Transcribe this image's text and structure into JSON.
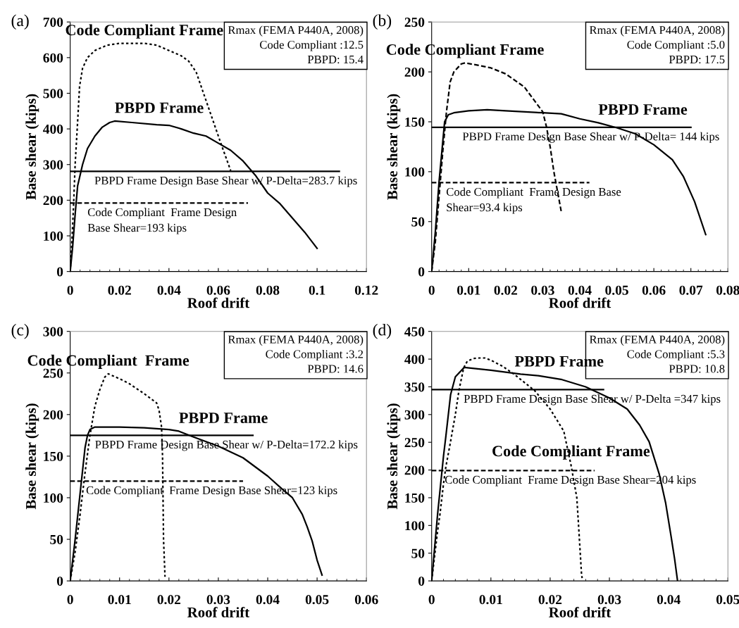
{
  "chart_data": [
    {
      "type": "line",
      "title": "(a)",
      "xlabel": "Roof drift",
      "ylabel": "Base shear (kips)",
      "xlim": [
        0,
        0.12
      ],
      "xticks": [
        0,
        0.02,
        0.04,
        0.06,
        0.08,
        0.1,
        0.12
      ],
      "ylim": [
        0,
        700
      ],
      "yticks": [
        0,
        100,
        200,
        300,
        400,
        500,
        600,
        700
      ],
      "grid": false,
      "legend": false,
      "marker": "none",
      "series": [
        {
          "color": "#000000",
          "line_style": "dotted",
          "x": [
            0,
            0.0005,
            0.001,
            0.0015,
            0.002,
            0.003,
            0.0038,
            0.005,
            0.007,
            0.01,
            0.015,
            0.02,
            0.03,
            0.035,
            0.04,
            0.045,
            0.048,
            0.051,
            0.054,
            0.058,
            0.061,
            0.065
          ],
          "values": [
            0,
            60,
            130,
            210,
            300,
            420,
            520,
            570,
            600,
            620,
            635,
            640,
            640,
            635,
            620,
            605,
            590,
            560,
            500,
            420,
            360,
            283
          ]
        },
        {
          "color": "#000000",
          "line_style": "solid",
          "x": [
            0,
            0.001,
            0.002,
            0.003,
            0.005,
            0.007,
            0.01,
            0.013,
            0.016,
            0.018,
            0.025,
            0.035,
            0.04,
            0.045,
            0.05,
            0.055,
            0.06,
            0.065,
            0.07,
            0.075,
            0.08,
            0.085,
            0.09,
            0.095,
            0.1
          ],
          "values": [
            0,
            70,
            160,
            240,
            300,
            345,
            380,
            405,
            418,
            422,
            418,
            412,
            410,
            400,
            388,
            380,
            360,
            340,
            310,
            270,
            220,
            190,
            150,
            110,
            65
          ]
        },
        {
          "color": "#000000",
          "line_style": "solid",
          "x": [
            0,
            0.109
          ],
          "values": [
            281,
            281
          ]
        },
        {
          "color": "#000000",
          "line_style": "dashed",
          "x": [
            0,
            0.072
          ],
          "values": [
            192,
            192
          ]
        }
      ],
      "annotations": [
        "Rmax (FEMA P440A, 2008)",
        "Code Compliant :12.5",
        "PBPD: 15.4",
        {
          "text": "Code Compliant Frame",
          "x": 0.03,
          "y": 640
        },
        {
          "text": "PBPD Frame",
          "x": 0.018,
          "y": 422
        },
        {
          "text": "PBPD Frame Design Base Shear w/ P-Delta=283.7 kips",
          "x": 0.0098,
          "y": 281
        },
        {
          "text": "Code Compliant  Frame Design\nBase Shear=193 kips",
          "x": 0.007,
          "y": 192
        }
      ]
    },
    {
      "type": "line",
      "title": "(b)",
      "xlabel": "Roof drift",
      "ylabel": "Base shear (kips)",
      "xlim": [
        0,
        0.08
      ],
      "xticks": [
        0,
        0.01,
        0.02,
        0.03,
        0.04,
        0.05,
        0.06,
        0.07,
        0.08
      ],
      "ylim": [
        0,
        250
      ],
      "yticks": [
        0,
        50,
        100,
        150,
        200,
        250
      ],
      "grid": false,
      "legend": false,
      "marker": "none",
      "series": [
        {
          "color": "#000000",
          "line_style": "dashed",
          "x": [
            0,
            0.001,
            0.002,
            0.003,
            0.004,
            0.005,
            0.006,
            0.008,
            0.009,
            0.012,
            0.016,
            0.02,
            0.025,
            0.028,
            0.03,
            0.031,
            0.032,
            0.033,
            0.034,
            0.035
          ],
          "values": [
            0,
            30,
            75,
            120,
            160,
            190,
            200,
            208,
            209,
            207,
            204,
            198,
            185,
            170,
            160,
            145,
            125,
            100,
            80,
            60
          ]
        },
        {
          "color": "#000000",
          "line_style": "solid",
          "x": [
            0,
            0.001,
            0.002,
            0.003,
            0.0035,
            0.0045,
            0.006,
            0.01,
            0.015,
            0.02,
            0.03,
            0.035,
            0.04,
            0.045,
            0.05,
            0.055,
            0.06,
            0.065,
            0.068,
            0.071,
            0.074
          ],
          "values": [
            0,
            40,
            90,
            130,
            150,
            157,
            159,
            161,
            162,
            161,
            159,
            158,
            153,
            149,
            144,
            138,
            127,
            112,
            95,
            70,
            37
          ]
        },
        {
          "color": "#000000",
          "line_style": "solid",
          "x": [
            0,
            0.07
          ],
          "values": [
            144.5,
            144.5
          ]
        },
        {
          "color": "#000000",
          "line_style": "dashed",
          "x": [
            0,
            0.0426
          ],
          "values": [
            89,
            89
          ]
        }
      ],
      "annotations": [
        "Rmax (FEMA P440A, 2008)",
        "Code Compliant :5.0",
        "PBPD: 17.5",
        {
          "text": "Code Compliant Frame",
          "x": 0.009,
          "y": 209
        },
        {
          "text": "PBPD Frame",
          "x": 0.045,
          "y": 149
        },
        {
          "text": "PBPD Frame Design Base Shear w/ P-Delta= 144 kips",
          "x": 0.0083,
          "y": 144.5
        },
        {
          "text": "Code Compliant  Frame Design Base\nShear=93.4 kips",
          "x": 0.0039,
          "y": 89
        }
      ]
    },
    {
      "type": "line",
      "title": "(c)",
      "xlabel": "Roof drift",
      "ylabel": "Base shear (kips)",
      "xlim": [
        0,
        0.06
      ],
      "xticks": [
        0,
        0.01,
        0.02,
        0.03,
        0.04,
        0.05,
        0.06
      ],
      "ylim": [
        0,
        300
      ],
      "yticks": [
        0,
        50,
        100,
        150,
        200,
        250,
        300
      ],
      "grid": false,
      "legend": false,
      "marker": "none",
      "series": [
        {
          "color": "#000000",
          "line_style": "dotted",
          "x": [
            0,
            0.001,
            0.002,
            0.003,
            0.004,
            0.005,
            0.006,
            0.007,
            0.0077,
            0.01,
            0.012,
            0.015,
            0.0175,
            0.018,
            0.0185,
            0.0187,
            0.0188,
            0.0189,
            0.0192
          ],
          "values": [
            0,
            35,
            80,
            130,
            175,
            210,
            230,
            245,
            249,
            243,
            237,
            225,
            214,
            205,
            185,
            150,
            100,
            50,
            5
          ]
        },
        {
          "color": "#000000",
          "line_style": "solid",
          "x": [
            0,
            0.001,
            0.002,
            0.003,
            0.0035,
            0.004,
            0.005,
            0.01,
            0.015,
            0.02,
            0.022,
            0.025,
            0.03,
            0.035,
            0.04,
            0.043,
            0.045,
            0.047,
            0.048,
            0.049,
            0.05,
            0.051
          ],
          "values": [
            0,
            50,
            105,
            160,
            175,
            182,
            185,
            185,
            184,
            182,
            180,
            173,
            162,
            148,
            126,
            110,
            100,
            80,
            65,
            48,
            25,
            7
          ]
        },
        {
          "color": "#000000",
          "line_style": "solid",
          "x": [
            0,
            0.037
          ],
          "values": [
            175,
            175
          ]
        },
        {
          "color": "#000000",
          "line_style": "dashed",
          "x": [
            0,
            0.035
          ],
          "values": [
            120,
            120
          ]
        }
      ],
      "annotations": [
        "Rmax (FEMA P440A, 2008)",
        "Code Compliant :3.2",
        "PBPD: 14.6",
        {
          "text": "Code Compliant  Frame",
          "x": 0.0077,
          "y": 249
        },
        {
          "text": "PBPD Frame",
          "x": 0.022,
          "y": 180
        },
        {
          "text": "PBPD Frame Design Base Shear w/ P-Delta=172.2 kips",
          "x": 0.005,
          "y": 175
        },
        {
          "text": "Code Compliant  Frame Design Base Shear=123 kips",
          "x": 0.0032,
          "y": 120
        }
      ]
    },
    {
      "type": "line",
      "title": "(d)",
      "xlabel": "Roof drift",
      "ylabel": "Base shear (kips)",
      "xlim": [
        0,
        0.05
      ],
      "xticks": [
        0,
        0.01,
        0.02,
        0.03,
        0.04,
        0.05
      ],
      "ylim": [
        0,
        450
      ],
      "yticks": [
        0,
        50,
        100,
        150,
        200,
        250,
        300,
        350,
        400,
        450
      ],
      "grid": false,
      "legend": false,
      "marker": "none",
      "series": [
        {
          "color": "#000000",
          "line_style": "dotted",
          "x": [
            0,
            0.001,
            0.0014,
            0.002,
            0.0024,
            0.003,
            0.004,
            0.0046,
            0.0054,
            0.006,
            0.007,
            0.008,
            0.009,
            0.01,
            0.012,
            0.014,
            0.016,
            0.0174,
            0.02,
            0.0223,
            0.0235,
            0.0245,
            0.0248,
            0.0253,
            0.0254
          ],
          "values": [
            0,
            90,
            120,
            175,
            206,
            240,
            300,
            343,
            384,
            396,
            401,
            402,
            402,
            398,
            387,
            372,
            355,
            343,
            310,
            270,
            210,
            150,
            99,
            11,
            5
          ]
        },
        {
          "color": "#000000",
          "line_style": "solid",
          "x": [
            0,
            0.001,
            0.002,
            0.0024,
            0.0032,
            0.004,
            0.0055,
            0.01,
            0.015,
            0.018,
            0.022,
            0.026,
            0.03,
            0.033,
            0.0351,
            0.0367,
            0.0384,
            0.0395,
            0.0404,
            0.041,
            0.0415
          ],
          "values": [
            0,
            120,
            225,
            261,
            336,
            368,
            385,
            380,
            373,
            370,
            363,
            350,
            330,
            310,
            281,
            251,
            193,
            140,
            81,
            40,
            0
          ]
        },
        {
          "color": "#000000",
          "line_style": "solid",
          "x": [
            0,
            0.029
          ],
          "values": [
            345,
            345
          ]
        },
        {
          "color": "#000000",
          "line_style": "dashed",
          "x": [
            0,
            0.0275
          ],
          "values": [
            199,
            199
          ]
        }
      ],
      "annotations": [
        "Rmax (FEMA P440A, 2008)",
        "Code Compliant :5.3",
        "PBPD: 10.8",
        {
          "text": "Code Compliant Frame",
          "x": 0.0235,
          "y": 210
        },
        {
          "text": "PBPD Frame",
          "x": 0.014,
          "y": 372
        },
        {
          "text": "PBPD Frame Design Base Shear w/ P-Delta =347 kips",
          "x": 0.0054,
          "y": 345
        },
        {
          "text": "Code Compliant  Frame Design Base Shear=204 kips",
          "x": 0.0022,
          "y": 199
        }
      ]
    }
  ]
}
